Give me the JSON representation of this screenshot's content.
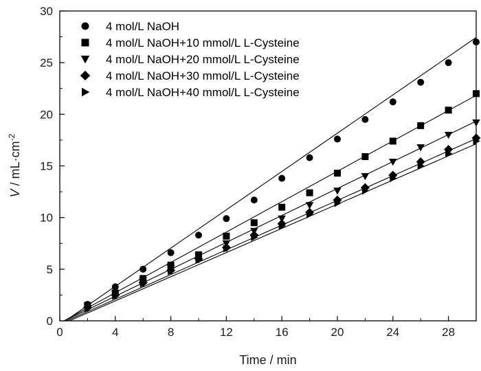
{
  "chart_data": {
    "type": "scatter",
    "title": "",
    "xlabel": "Time / min",
    "ylabel": {
      "italic": "V",
      "rest": " / mL·cm",
      "sup": "-2"
    },
    "xlim": [
      0,
      30
    ],
    "ylim": [
      0,
      30
    ],
    "x_ticks": [
      0,
      4,
      8,
      12,
      16,
      20,
      24,
      28
    ],
    "x_tick_labels": [
      "0",
      "4",
      "8",
      "12",
      "16",
      "20",
      "24",
      "28"
    ],
    "y_ticks": [
      0,
      5,
      10,
      15,
      20,
      25,
      30
    ],
    "y_tick_labels": [
      "0",
      "5",
      "10",
      "15",
      "20",
      "25",
      "30"
    ],
    "grid": false,
    "legend_position": "top-left",
    "x": [
      2,
      4,
      6,
      8,
      10,
      12,
      14,
      16,
      18,
      20,
      22,
      24,
      26,
      28,
      30
    ],
    "series": [
      {
        "name": "4 mol/L NaOH",
        "marker": "circle",
        "values": [
          1.6,
          3.3,
          5.0,
          6.6,
          8.3,
          9.9,
          11.7,
          13.8,
          15.8,
          17.6,
          19.5,
          21.2,
          23.1,
          25.0,
          27.0
        ],
        "fit": {
          "x0": 0.4,
          "slope": 0.927
        }
      },
      {
        "name": "4 mol/L NaOH+10 mmol/L L-Cysteine",
        "marker": "square",
        "values": [
          1.5,
          2.7,
          4.1,
          5.4,
          6.4,
          8.2,
          9.5,
          11.0,
          12.4,
          14.3,
          15.9,
          17.4,
          18.9,
          20.4,
          22.0
        ],
        "fit": {
          "x0": 0.3,
          "slope": 0.735
        }
      },
      {
        "name": "4 mol/L NaOH+20 mmol/L L-Cysteine",
        "marker": "triangle-down",
        "values": [
          1.4,
          2.6,
          3.9,
          5.1,
          6.3,
          7.5,
          8.7,
          9.9,
          11.2,
          12.6,
          14.0,
          15.4,
          16.8,
          18.0,
          19.2
        ],
        "fit": {
          "x0": 0.35,
          "slope": 0.652
        }
      },
      {
        "name": "4 mol/L NaOH+30 mmol/L L-Cysteine",
        "marker": "diamond",
        "values": [
          1.3,
          2.5,
          3.7,
          4.9,
          6.0,
          7.1,
          8.3,
          9.4,
          10.5,
          11.7,
          12.9,
          14.1,
          15.4,
          16.6,
          17.7
        ],
        "fit": {
          "x0": 0.5,
          "slope": 0.598
        }
      },
      {
        "name": "4 mol/L NaOH+40 mmol/L L-Cysteine",
        "marker": "triangle-right",
        "values": [
          1.2,
          2.4,
          3.6,
          4.8,
          5.9,
          7.0,
          8.1,
          9.2,
          10.3,
          11.4,
          12.6,
          13.8,
          15.0,
          16.2,
          17.4
        ],
        "fit": {
          "x0": 0.7,
          "slope": 0.585
        }
      }
    ]
  }
}
